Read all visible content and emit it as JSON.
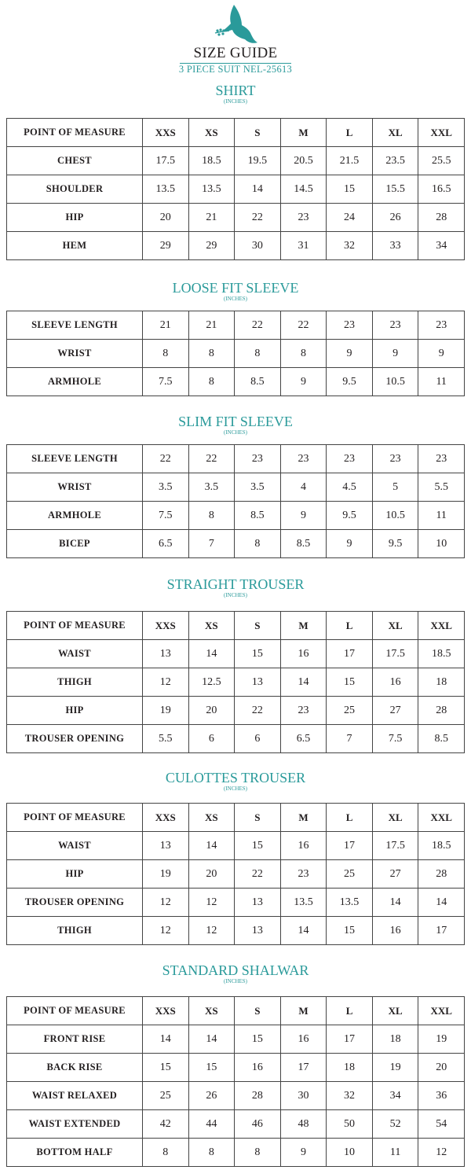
{
  "header": {
    "logo_icon": "dove-with-olive-branch-icon",
    "title": "SIZE GUIDE",
    "subtitle": "3 PIECE SUIT NEL-25613"
  },
  "colors": {
    "accent": "#2a9a9a",
    "text": "#231f20",
    "border": "#444444"
  },
  "sections": [
    {
      "title": "SHIRT",
      "unit": "(INCHES)",
      "header": [
        "POINT OF MEASURE",
        "XXS",
        "XS",
        "S",
        "M",
        "L",
        "XL",
        "XXL"
      ],
      "rows": [
        [
          "CHEST",
          "17.5",
          "18.5",
          "19.5",
          "20.5",
          "21.5",
          "23.5",
          "25.5"
        ],
        [
          "SHOULDER",
          "13.5",
          "13.5",
          "14",
          "14.5",
          "15",
          "15.5",
          "16.5"
        ],
        [
          "HIP",
          "20",
          "21",
          "22",
          "23",
          "24",
          "26",
          "28"
        ],
        [
          "HEM",
          "29",
          "29",
          "30",
          "31",
          "32",
          "33",
          "34"
        ]
      ]
    },
    {
      "title": "LOOSE FIT SLEEVE",
      "unit": "(INCHES)",
      "rows": [
        [
          "SLEEVE LENGTH",
          "21",
          "21",
          "22",
          "22",
          "23",
          "23",
          "23"
        ],
        [
          "WRIST",
          "8",
          "8",
          "8",
          "8",
          "9",
          "9",
          "9"
        ],
        [
          "ARMHOLE",
          "7.5",
          "8",
          "8.5",
          "9",
          "9.5",
          "10.5",
          "11"
        ]
      ]
    },
    {
      "title": "SLIM FIT SLEEVE",
      "unit": "(INCHES)",
      "rows": [
        [
          "SLEEVE LENGTH",
          "22",
          "22",
          "23",
          "23",
          "23",
          "23",
          "23"
        ],
        [
          "WRIST",
          "3.5",
          "3.5",
          "3.5",
          "4",
          "4.5",
          "5",
          "5.5"
        ],
        [
          "ARMHOLE",
          "7.5",
          "8",
          "8.5",
          "9",
          "9.5",
          "10.5",
          "11"
        ],
        [
          "BICEP",
          "6.5",
          "7",
          "8",
          "8.5",
          "9",
          "9.5",
          "10"
        ]
      ]
    },
    {
      "title": "STRAIGHT TROUSER",
      "unit": "(INCHES)",
      "header": [
        "POINT OF MEASURE",
        "XXS",
        "XS",
        "S",
        "M",
        "L",
        "XL",
        "XXL"
      ],
      "rows": [
        [
          "WAIST",
          "13",
          "14",
          "15",
          "16",
          "17",
          "17.5",
          "18.5"
        ],
        [
          "THIGH",
          "12",
          "12.5",
          "13",
          "14",
          "15",
          "16",
          "18"
        ],
        [
          "HIP",
          "19",
          "20",
          "22",
          "23",
          "25",
          "27",
          "28"
        ],
        [
          "TROUSER OPENING",
          "5.5",
          "6",
          "6",
          "6.5",
          "7",
          "7.5",
          "8.5"
        ]
      ]
    },
    {
      "title": "CULOTTES TROUSER",
      "unit": "(INCHES)",
      "header": [
        "POINT OF MEASURE",
        "XXS",
        "XS",
        "S",
        "M",
        "L",
        "XL",
        "XXL"
      ],
      "rows": [
        [
          "WAIST",
          "13",
          "14",
          "15",
          "16",
          "17",
          "17.5",
          "18.5"
        ],
        [
          "HIP",
          "19",
          "20",
          "22",
          "23",
          "25",
          "27",
          "28"
        ],
        [
          "TROUSER OPENING",
          "12",
          "12",
          "13",
          "13.5",
          "13.5",
          "14",
          "14"
        ],
        [
          "THIGH",
          "12",
          "12",
          "13",
          "14",
          "15",
          "16",
          "17"
        ]
      ]
    },
    {
      "title": "STANDARD SHALWAR",
      "unit": "(INCHES)",
      "header": [
        "POINT OF MEASURE",
        "XXS",
        "XS",
        "S",
        "M",
        "L",
        "XL",
        "XXL"
      ],
      "rows": [
        [
          "FRONT RISE",
          "14",
          "14",
          "15",
          "16",
          "17",
          "18",
          "19"
        ],
        [
          "BACK RISE",
          "15",
          "15",
          "16",
          "17",
          "18",
          "19",
          "20"
        ],
        [
          "WAIST RELAXED",
          "25",
          "26",
          "28",
          "30",
          "32",
          "34",
          "36"
        ],
        [
          "WAIST EXTENDED",
          "42",
          "44",
          "46",
          "48",
          "50",
          "52",
          "54"
        ],
        [
          "BOTTOM HALF",
          "8",
          "8",
          "8",
          "9",
          "10",
          "11",
          "12"
        ]
      ]
    }
  ]
}
